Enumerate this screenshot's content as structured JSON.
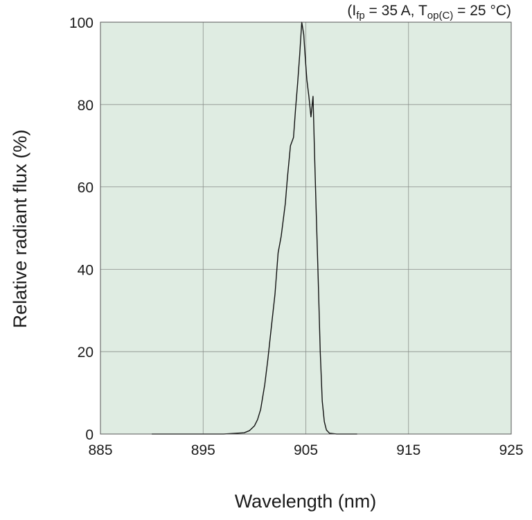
{
  "chart_data": {
    "type": "line",
    "title": "",
    "condition": {
      "prefix": "(I",
      "sub1": "fp",
      "middle": " = 35 A, T",
      "sub2": "op(C)",
      "suffix": " = 25 °C)"
    },
    "xlabel": "Wavelength (nm)",
    "ylabel": "Relative radiant flux (%)",
    "xlim": [
      885,
      925
    ],
    "ylim": [
      0,
      100
    ],
    "xticks": [
      "885",
      "895",
      "905",
      "915",
      "925"
    ],
    "yticks": [
      "0",
      "20",
      "40",
      "60",
      "80",
      "100"
    ],
    "grid": true,
    "background_color": "#dfece2",
    "line_color": "#111111",
    "series": [
      {
        "x": [
          890,
          897,
          899,
          899.5,
          900,
          900.3,
          900.6,
          901,
          901.3,
          901.6,
          902,
          902.3,
          902.6,
          903,
          903.2,
          903.5,
          903.8,
          904,
          904.2,
          904.4,
          904.6,
          904.8,
          904.9,
          905.1,
          905.3,
          905.5,
          905.7,
          905.85,
          906,
          906.2,
          906.4,
          906.6,
          906.8,
          907,
          907.3,
          908,
          910
        ],
        "y": [
          0,
          0,
          0.3,
          0.8,
          2,
          3.5,
          6,
          12,
          18,
          25,
          34,
          44,
          48,
          56,
          62,
          70,
          72,
          79,
          85,
          92,
          100,
          97,
          93,
          86,
          82,
          77,
          82,
          68,
          55,
          38,
          20,
          8,
          3,
          1,
          0.2,
          0,
          0
        ]
      }
    ]
  }
}
